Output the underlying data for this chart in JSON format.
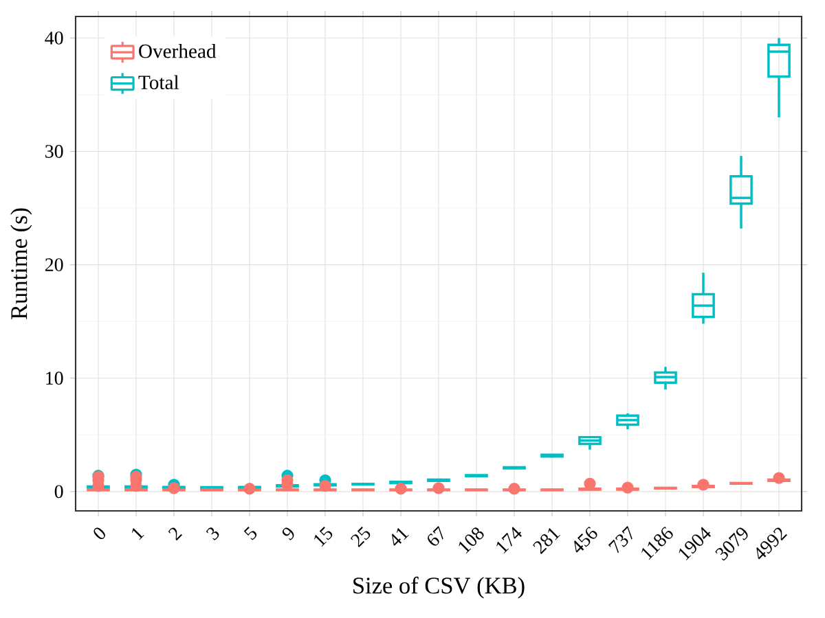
{
  "chart_data": {
    "type": "box",
    "xlabel": "Size of CSV (KB)",
    "ylabel": "Runtime (s)",
    "categories": [
      "0",
      "1",
      "2",
      "3",
      "5",
      "9",
      "15",
      "25",
      "41",
      "67",
      "108",
      "174",
      "281",
      "456",
      "737",
      "1186",
      "1904",
      "3079",
      "4992"
    ],
    "ylim": [
      -1.7,
      41.9
    ],
    "yticks": [
      0,
      10,
      20,
      30,
      40
    ],
    "grid": true,
    "legend": "top left",
    "marker": "circle",
    "series": [
      {
        "name": "Overhead",
        "color": "#f8766d",
        "boxes": [
          {
            "low": 0.1,
            "q1": 0.12,
            "median": 0.15,
            "q3": 0.18,
            "high": 0.2,
            "outliers": [
              0.5,
              1.0,
              1.3
            ]
          },
          {
            "low": 0.1,
            "q1": 0.12,
            "median": 0.15,
            "q3": 0.18,
            "high": 0.2,
            "outliers": [
              0.5,
              1.0,
              1.3
            ]
          },
          {
            "low": 0.1,
            "q1": 0.12,
            "median": 0.15,
            "q3": 0.18,
            "high": 0.2,
            "outliers": [
              0.3
            ]
          },
          {
            "low": 0.1,
            "q1": 0.12,
            "median": 0.15,
            "q3": 0.18,
            "high": 0.2
          },
          {
            "low": 0.1,
            "q1": 0.12,
            "median": 0.15,
            "q3": 0.18,
            "high": 0.2,
            "outliers": [
              0.25
            ]
          },
          {
            "low": 0.1,
            "q1": 0.12,
            "median": 0.15,
            "q3": 0.18,
            "high": 0.2,
            "outliers": [
              0.6,
              1.0
            ]
          },
          {
            "low": 0.1,
            "q1": 0.12,
            "median": 0.15,
            "q3": 0.18,
            "high": 0.2,
            "outliers": [
              0.5
            ]
          },
          {
            "low": 0.1,
            "q1": 0.12,
            "median": 0.15,
            "q3": 0.18,
            "high": 0.2
          },
          {
            "low": 0.1,
            "q1": 0.12,
            "median": 0.15,
            "q3": 0.18,
            "high": 0.2,
            "outliers": [
              0.25
            ]
          },
          {
            "low": 0.1,
            "q1": 0.12,
            "median": 0.15,
            "q3": 0.18,
            "high": 0.2,
            "outliers": [
              0.3
            ]
          },
          {
            "low": 0.1,
            "q1": 0.12,
            "median": 0.15,
            "q3": 0.18,
            "high": 0.2
          },
          {
            "low": 0.1,
            "q1": 0.12,
            "median": 0.15,
            "q3": 0.18,
            "high": 0.2,
            "outliers": [
              0.25
            ]
          },
          {
            "low": 0.1,
            "q1": 0.12,
            "median": 0.15,
            "q3": 0.18,
            "high": 0.2
          },
          {
            "low": 0.15,
            "q1": 0.18,
            "median": 0.2,
            "q3": 0.25,
            "high": 0.3,
            "outliers": [
              0.7
            ]
          },
          {
            "low": 0.15,
            "q1": 0.18,
            "median": 0.2,
            "q3": 0.25,
            "high": 0.3,
            "outliers": [
              0.35
            ]
          },
          {
            "low": 0.25,
            "q1": 0.28,
            "median": 0.3,
            "q3": 0.33,
            "high": 0.35
          },
          {
            "low": 0.35,
            "q1": 0.4,
            "median": 0.45,
            "q3": 0.5,
            "high": 0.55,
            "outliers": [
              0.6
            ]
          },
          {
            "low": 0.65,
            "q1": 0.7,
            "median": 0.72,
            "q3": 0.75,
            "high": 0.8
          },
          {
            "low": 0.9,
            "q1": 0.95,
            "median": 1.0,
            "q3": 1.05,
            "high": 1.1,
            "outliers": [
              1.2
            ]
          }
        ]
      },
      {
        "name": "Total",
        "color": "#00bfc4",
        "boxes": [
          {
            "low": 0.3,
            "q1": 0.35,
            "median": 0.4,
            "q3": 0.45,
            "high": 0.5,
            "outliers": [
              1.4
            ]
          },
          {
            "low": 0.3,
            "q1": 0.35,
            "median": 0.4,
            "q3": 0.45,
            "high": 0.5,
            "outliers": [
              1.5
            ]
          },
          {
            "low": 0.3,
            "q1": 0.33,
            "median": 0.35,
            "q3": 0.4,
            "high": 0.45,
            "outliers": [
              0.6
            ]
          },
          {
            "low": 0.3,
            "q1": 0.32,
            "median": 0.35,
            "q3": 0.38,
            "high": 0.4
          },
          {
            "low": 0.3,
            "q1": 0.33,
            "median": 0.35,
            "q3": 0.4,
            "high": 0.45
          },
          {
            "low": 0.4,
            "q1": 0.45,
            "median": 0.5,
            "q3": 0.55,
            "high": 0.6,
            "outliers": [
              1.4
            ]
          },
          {
            "low": 0.5,
            "q1": 0.55,
            "median": 0.6,
            "q3": 0.65,
            "high": 0.7,
            "outliers": [
              1.0
            ]
          },
          {
            "low": 0.6,
            "q1": 0.62,
            "median": 0.65,
            "q3": 0.68,
            "high": 0.7
          },
          {
            "low": 0.7,
            "q1": 0.75,
            "median": 0.8,
            "q3": 0.85,
            "high": 0.9
          },
          {
            "low": 0.9,
            "q1": 0.95,
            "median": 1.0,
            "q3": 1.05,
            "high": 1.1
          },
          {
            "low": 1.3,
            "q1": 1.35,
            "median": 1.4,
            "q3": 1.45,
            "high": 1.5
          },
          {
            "low": 2.0,
            "q1": 2.05,
            "median": 2.1,
            "q3": 2.15,
            "high": 2.2
          },
          {
            "low": 3.0,
            "q1": 3.1,
            "median": 3.2,
            "q3": 3.25,
            "high": 3.3
          },
          {
            "low": 3.7,
            "q1": 4.2,
            "median": 4.5,
            "q3": 4.8,
            "high": 4.9
          },
          {
            "low": 5.5,
            "q1": 5.9,
            "median": 6.3,
            "q3": 6.7,
            "high": 6.9
          },
          {
            "low": 9.0,
            "q1": 9.6,
            "median": 10.1,
            "q3": 10.5,
            "high": 11.0
          },
          {
            "low": 14.8,
            "q1": 15.4,
            "median": 16.4,
            "q3": 17.4,
            "high": 19.3
          },
          {
            "low": 23.2,
            "q1": 25.4,
            "median": 25.9,
            "q3": 27.8,
            "high": 29.6
          },
          {
            "low": 33.0,
            "q1": 36.6,
            "median": 38.8,
            "q3": 39.4,
            "high": 40.0
          }
        ]
      }
    ]
  }
}
